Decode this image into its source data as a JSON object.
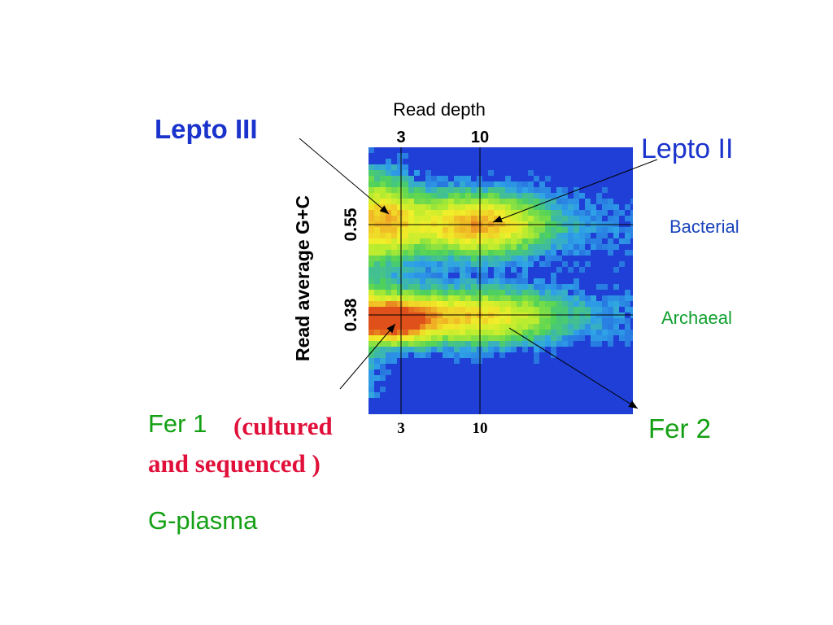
{
  "chart_data": {
    "type": "heatmap",
    "title": "",
    "xlabel": "Read depth",
    "ylabel": "Read average G+C",
    "x_ticks_top": [
      "3",
      "10"
    ],
    "x_ticks_bottom": [
      "3",
      "10"
    ],
    "y_ticks": [
      "0.55",
      "0.38"
    ],
    "x_tick_values": [
      3,
      10
    ],
    "y_tick_values": [
      0.55,
      0.38
    ],
    "grid": true,
    "colorscale": [
      "#1f3fd6",
      "#2fa3e8",
      "#4fd25a",
      "#b6ec2f",
      "#f0ef2a",
      "#f0b125",
      "#e0501b"
    ],
    "clusters": [
      {
        "name": "Lepto III",
        "x": 3,
        "y": 0.55,
        "intensity": 0.55
      },
      {
        "name": "Lepto II",
        "x": 10,
        "y": 0.55,
        "intensity": 0.95
      },
      {
        "name": "Fer 1",
        "x": 3,
        "y": 0.38,
        "intensity": 1.0
      },
      {
        "name": "Fer 2",
        "x": 10,
        "y": 0.38,
        "intensity": 0.75
      }
    ]
  },
  "labels": {
    "lepto3": "Lepto III",
    "lepto2": "Lepto II",
    "bacterial": "Bacterial",
    "archaeal": "Archaeal",
    "fer1": "Fer 1",
    "fer1_note_a": "(cultured",
    "fer1_note_b": "and sequenced )",
    "fer2": "Fer 2",
    "gplasma": "G-plasma"
  },
  "colors": {
    "blue_label": "#1a33cc",
    "green_label": "#14a014",
    "red_note": "#e0103a",
    "bacterial": "#1a44bb",
    "archaeal": "#10a030"
  }
}
